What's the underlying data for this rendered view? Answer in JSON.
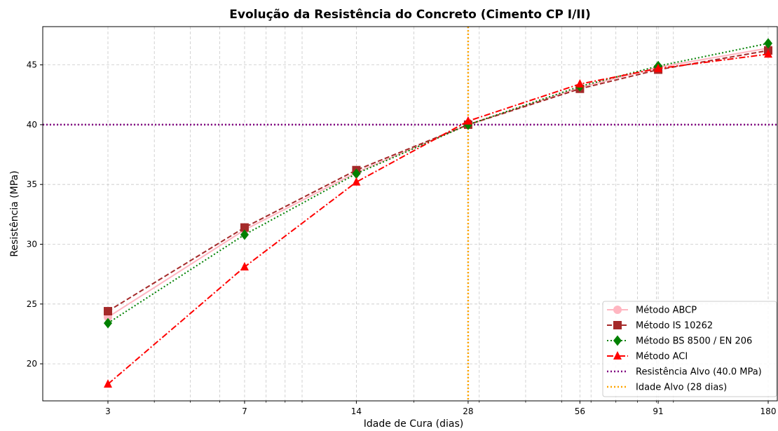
{
  "chart_data": {
    "type": "line",
    "title": "Evolução da Resistência do Concreto (Cimento CP I/II)",
    "xlabel": "Idade de Cura (dias)",
    "ylabel": "Resistência (MPa)",
    "x_scale": "log",
    "x": [
      3,
      7,
      14,
      28,
      56,
      91,
      180
    ],
    "x_tick_labels": [
      "3",
      "7",
      "14",
      "28",
      "56",
      "91",
      "180"
    ],
    "y_ticks": [
      20,
      25,
      30,
      35,
      40,
      45
    ],
    "ylim": [
      16.9,
      48.2
    ],
    "grid": true,
    "legend_position": "lower right",
    "series": [
      {
        "name": "Método ABCP",
        "values": [
          23.9,
          31.2,
          36.0,
          40.0,
          43.1,
          44.8,
          46.4
        ],
        "color": "#ffb6c1",
        "marker": "circle",
        "line": "solid"
      },
      {
        "name": "Método IS 10262",
        "values": [
          24.4,
          31.4,
          36.2,
          40.0,
          43.0,
          44.6,
          46.2
        ],
        "color": "#a52a2a",
        "marker": "square",
        "line": "dashed"
      },
      {
        "name": "Método BS 8500 / EN 206",
        "values": [
          23.4,
          30.8,
          35.9,
          40.0,
          43.2,
          44.9,
          46.8
        ],
        "color": "#008000",
        "marker": "diamond",
        "line": "dotted"
      },
      {
        "name": "Método ACI",
        "values": [
          18.3,
          28.1,
          35.2,
          40.3,
          43.4,
          44.7,
          45.9
        ],
        "color": "#ff0000",
        "marker": "triangle",
        "line": "dashdot"
      }
    ],
    "reference_lines": [
      {
        "name": "Resistência Alvo (40.0 MPa)",
        "orientation": "horizontal",
        "value": 40.0,
        "color": "#800080"
      },
      {
        "name": "Idade Alvo (28 dias)",
        "orientation": "vertical",
        "value": 28,
        "color": "#ffa500"
      }
    ]
  }
}
